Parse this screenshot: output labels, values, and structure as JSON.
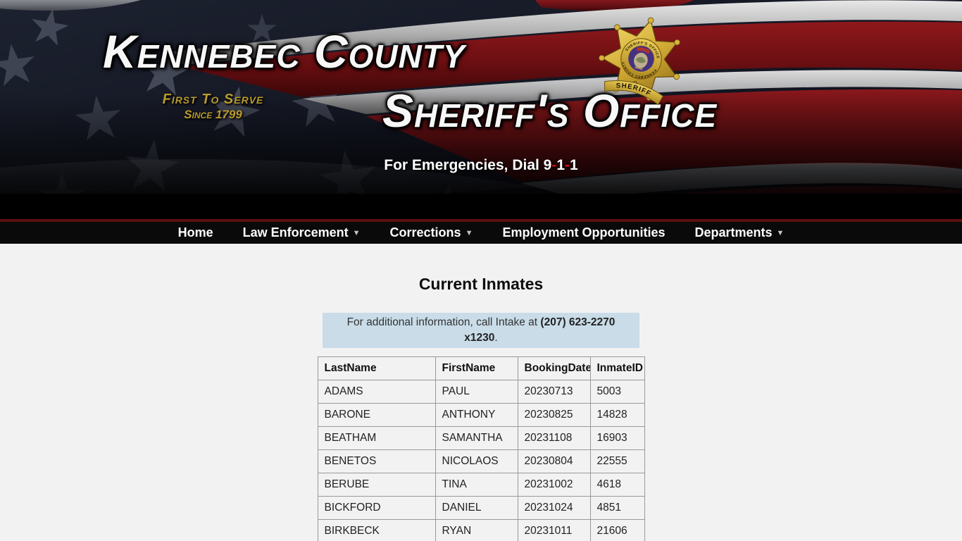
{
  "header": {
    "title_line1": "Kennebec County",
    "title_line2": "Sheriff's Office",
    "tagline_line1": "First To Serve",
    "tagline_line2": "Since 1799",
    "emergency": {
      "prefix": "For Emergencies, Dial ",
      "digit1": "9",
      "dash1": "-",
      "digit2": "1",
      "dash2": "-",
      "digit3": "1"
    },
    "badge": {
      "ring_top": "SHERIFF'S OFFICE",
      "ring_bottom": "KENNEBEC COUNTY",
      "banner": "SHERIFF",
      "seal_label": "MAINE"
    }
  },
  "nav": {
    "dropdown_arrow": "▼",
    "items": [
      {
        "label": "Home",
        "has_dropdown": false
      },
      {
        "label": "Law Enforcement",
        "has_dropdown": true
      },
      {
        "label": "Corrections",
        "has_dropdown": true
      },
      {
        "label": "Employment Opportunities",
        "has_dropdown": false
      },
      {
        "label": "Departments",
        "has_dropdown": true
      }
    ]
  },
  "main": {
    "page_title": "Current Inmates",
    "info": {
      "text_before": "For additional information, call Intake at ",
      "phone": "(207) 623-2270 x1230",
      "text_after": "."
    },
    "table": {
      "columns": [
        "LastName",
        "FirstName",
        "BookingDate",
        "InmateID"
      ],
      "rows": [
        [
          "ADAMS",
          "PAUL",
          "20230713",
          "5003"
        ],
        [
          "BARONE",
          "ANTHONY",
          "20230825",
          "14828"
        ],
        [
          "BEATHAM",
          "SAMANTHA",
          "20231108",
          "16903"
        ],
        [
          "BENETOS",
          "NICOLAOS",
          "20230804",
          "22555"
        ],
        [
          "BERUBE",
          "TINA",
          "20231002",
          "4618"
        ],
        [
          "BICKFORD",
          "DANIEL",
          "20231024",
          "4851"
        ],
        [
          "BIRKBECK",
          "RYAN",
          "20231011",
          "21606"
        ]
      ]
    }
  },
  "colors": {
    "accent_red": "#cc1111",
    "nav_bar_red": "#5c1010",
    "gold": "#b99b2f",
    "info_box_bg": "#c9dce8",
    "table_border": "#999999"
  }
}
